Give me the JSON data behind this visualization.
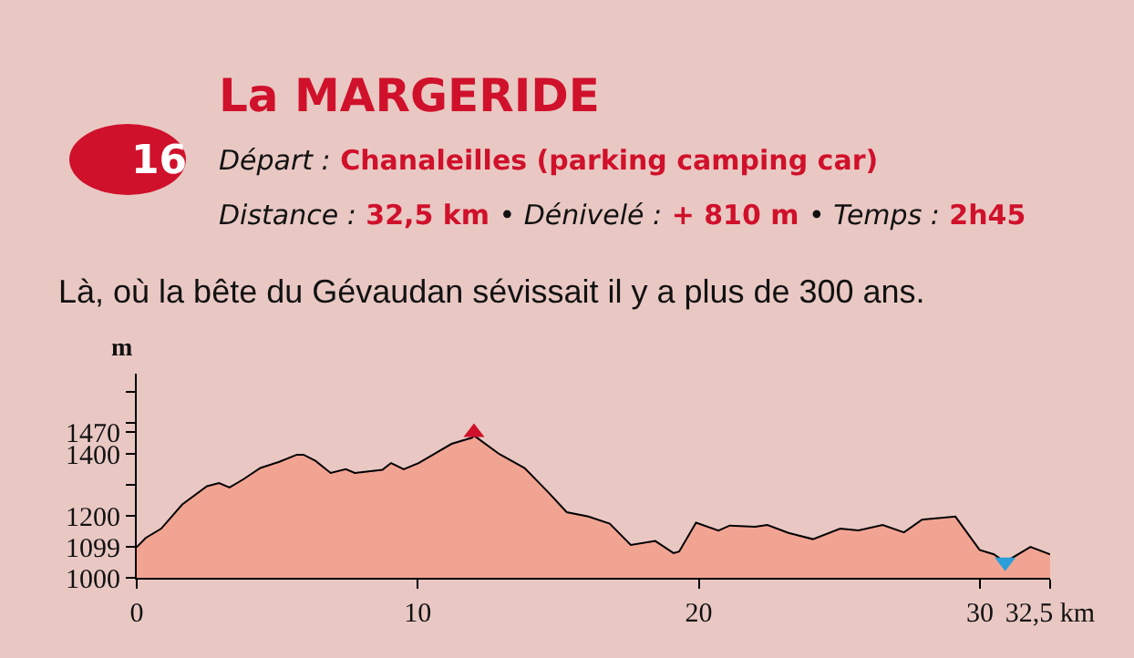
{
  "chart_data": {
    "type": "area",
    "title": "La MARGERIDE",
    "ylabel": "m",
    "annotations": [
      "16",
      "Départ : Chanaleilles (parking camping car)",
      "Distance : 32,5 km • Dénivelé : + 810 m • Temps : 2h45",
      "Là, où la bête du Gévaudan sévissait il y a plus de 300 ans."
    ],
    "xlim": [
      0,
      32.5
    ],
    "xticks": [
      0,
      10,
      20,
      30,
      {
        "value": 32.5,
        "label": "32,5 km"
      }
    ],
    "ylim": [
      1000,
      1660
    ],
    "yticks": [
      1000,
      1099,
      1200,
      {
        "value": 1300,
        "label": null
      },
      1400,
      1470,
      {
        "value": 1500,
        "label": null
      },
      {
        "value": 1600,
        "label": null
      }
    ],
    "series": [
      {
        "color": "#f2a493",
        "x": [
          0,
          0.32,
          0.87,
          1.62,
          2.5,
          2.93,
          3.3,
          3.8,
          4.4,
          5.07,
          5.7,
          5.93,
          6.36,
          6.9,
          7.44,
          7.76,
          8.74,
          9.05,
          9.5,
          10.03,
          10.46,
          11.2,
          11.93,
          12.0,
          12.9,
          13.8,
          14.65,
          15.3,
          16.07,
          16.83,
          17.58,
          18.45,
          19.1,
          19.3,
          19.9,
          20.7,
          21.1,
          22.0,
          22.44,
          23.19,
          24.06,
          25.03,
          25.68,
          26.54,
          27.3,
          27.94,
          29.13,
          29.99,
          30.5,
          30.9,
          31.8,
          32.5
        ],
        "values": [
          1099,
          1129,
          1159,
          1237,
          1296,
          1306,
          1292,
          1319,
          1355,
          1375,
          1398,
          1398,
          1378,
          1339,
          1351,
          1339,
          1349,
          1371,
          1351,
          1371,
          1394,
          1433,
          1453,
          1460,
          1400,
          1355,
          1276,
          1212,
          1198,
          1175,
          1106,
          1119,
          1080,
          1085,
          1178,
          1153,
          1169,
          1165,
          1171,
          1145,
          1125,
          1159,
          1153,
          1171,
          1147,
          1188,
          1198,
          1090,
          1076,
          1051,
          1100,
          1076
        ]
      },
      {
        "type": "scatter",
        "marker": "triangle",
        "color": "#d0112b",
        "x": [
          12.0
        ],
        "values": [
          1470
        ]
      },
      {
        "type": "scatter",
        "marker": "triangle-down",
        "color": "#2a9fd8",
        "x": [
          30.9
        ],
        "values": [
          1051
        ]
      }
    ]
  }
}
